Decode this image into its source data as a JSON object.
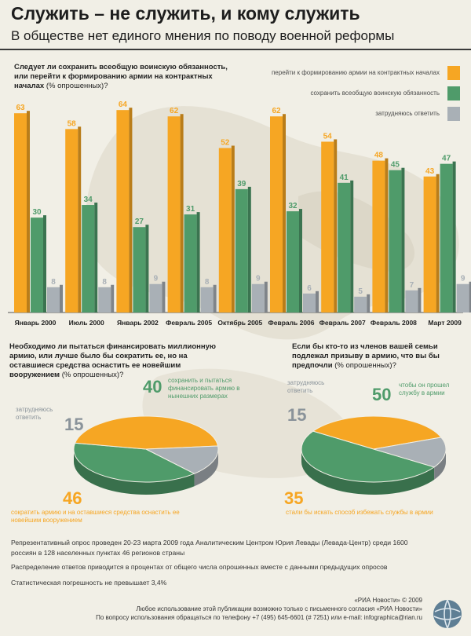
{
  "header": {
    "title": "Служить – не служить, и кому служить",
    "subtitle": "В обществе нет единого мнения по поводу военной реформы"
  },
  "section1": {
    "question": "Следует ли сохранить всеобщую воинскую обязанность, или перейти к формированию армии на контрактных началах",
    "question_note": "(% опрошенных)?"
  },
  "colors": {
    "orange": "#f6a623",
    "green": "#4f9b6a",
    "gray": "#a9b0b6",
    "ink": "#222222"
  },
  "chart_data": [
    {
      "type": "bar",
      "categories": [
        "Январь 2000",
        "Июль 2000",
        "Январь 2002",
        "Февраль 2005",
        "Октябрь 2005",
        "Февраль 2006",
        "Февраль 2007",
        "Февраль 2008",
        "Март 2009"
      ],
      "series": [
        {
          "name": "перейти к формированию армии на контрактных началах",
          "color": "#f6a623",
          "values": [
            63,
            58,
            64,
            62,
            52,
            62,
            54,
            48,
            43
          ]
        },
        {
          "name": "сохранить всеобщую воинскую обязанность",
          "color": "#4f9b6a",
          "values": [
            30,
            34,
            27,
            31,
            39,
            32,
            41,
            45,
            47
          ]
        },
        {
          "name": "затрудняюсь ответить",
          "color": "#a9b0b6",
          "values": [
            8,
            8,
            9,
            8,
            9,
            6,
            5,
            7,
            9
          ]
        }
      ],
      "ylim": [
        0,
        70
      ],
      "legend_position": "top-right"
    },
    {
      "type": "pie",
      "question": "Необходимо ли пытаться финансировать миллионную армию, или лучше было бы сократить ее, но на оставшиеся средства оснастить ее новейшим вооружением",
      "question_note": "(% опрошенных)?",
      "slices": [
        {
          "label": "сохранить и пытаться финансировать армию в нынешних размерах",
          "value": 40,
          "color": "#4f9b6a"
        },
        {
          "label": "сократить армию и на оставшиеся средства оснастить ее новейшим вооружением",
          "value": 46,
          "color": "#f6a623"
        },
        {
          "label": "затрудняюсь ответить",
          "value": 15,
          "color": "#a9b0b6"
        }
      ]
    },
    {
      "type": "pie",
      "question": "Если бы кто-то из членов вашей семьи подлежал призыву в армию, что вы бы предпочли",
      "question_note": "(% опрошенных)?",
      "slices": [
        {
          "label": "чтобы он прошел службу в армии",
          "value": 50,
          "color": "#4f9b6a"
        },
        {
          "label": "стали бы искать способ избежать службы в армии",
          "value": 35,
          "color": "#f6a623"
        },
        {
          "label": "затрудняюсь ответить",
          "value": 15,
          "color": "#a9b0b6"
        }
      ]
    }
  ],
  "footer": {
    "line1": "Репрезентативный опрос проведен 20-23 марта 2009 года Аналитическим Центром Юрия Левады (Левада-Центр) среди 1600",
    "line2": "россиян в 128 населенных пунктах 46 регионов страны",
    "line3": "Распределение ответов приводится в процентах от общего числа опрошенных вместе с данными предыдущих опросов",
    "line4": "Статистическая погрешность не превышает 3,4%",
    "credit1": "«РИА Новости» © 2009",
    "credit2": "Любое использование этой публикации возможно только с письменного согласия «РИА Новости»",
    "credit3": "По вопросу использования обращаться по телефону +7 (495) 645-6601 (# 7251) или e-mail: infographica@rian.ru"
  }
}
